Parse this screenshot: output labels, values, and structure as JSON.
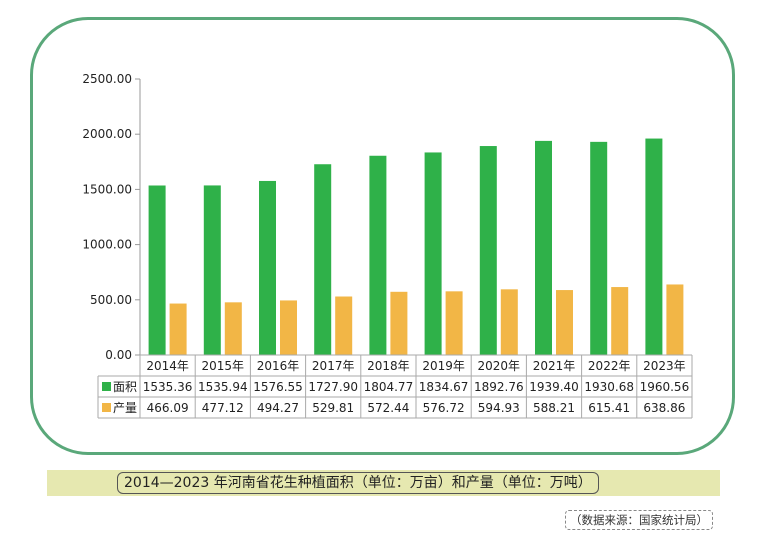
{
  "chart_data": {
    "type": "bar",
    "categories": [
      "2014年",
      "2015年",
      "2016年",
      "2017年",
      "2018年",
      "2019年",
      "2020年",
      "2021年",
      "2022年",
      "2023年"
    ],
    "series": [
      {
        "name": "面积",
        "color": "#2fb149",
        "values": [
          1535.36,
          1535.94,
          1576.55,
          1727.9,
          1804.77,
          1834.67,
          1892.76,
          1939.4,
          1930.68,
          1960.56
        ],
        "labels": [
          "1535.36",
          "1535.94",
          "1576.55",
          "1727.90",
          "1804.77",
          "1834.67",
          "1892.76",
          "1939.40",
          "1930.68",
          "1960.56"
        ]
      },
      {
        "name": "产量",
        "color": "#f2b646",
        "values": [
          466.09,
          477.12,
          494.27,
          529.81,
          572.44,
          576.72,
          594.93,
          588.21,
          615.41,
          638.86
        ],
        "labels": [
          "466.09",
          "477.12",
          "494.27",
          "529.81",
          "572.44",
          "576.72",
          "594.93",
          "588.21",
          "615.41",
          "638.86"
        ]
      }
    ],
    "yticks": [
      "0.00",
      "500.00",
      "1000.00",
      "1500.00",
      "2000.00",
      "2500.00"
    ],
    "ylim": [
      0,
      2500
    ],
    "data_table": true,
    "grid": false
  },
  "caption": "2014—2023 年河南省花生种植面积（单位：万亩）和产量（单位：万吨）",
  "source": "（数据来源：国家统计局）"
}
